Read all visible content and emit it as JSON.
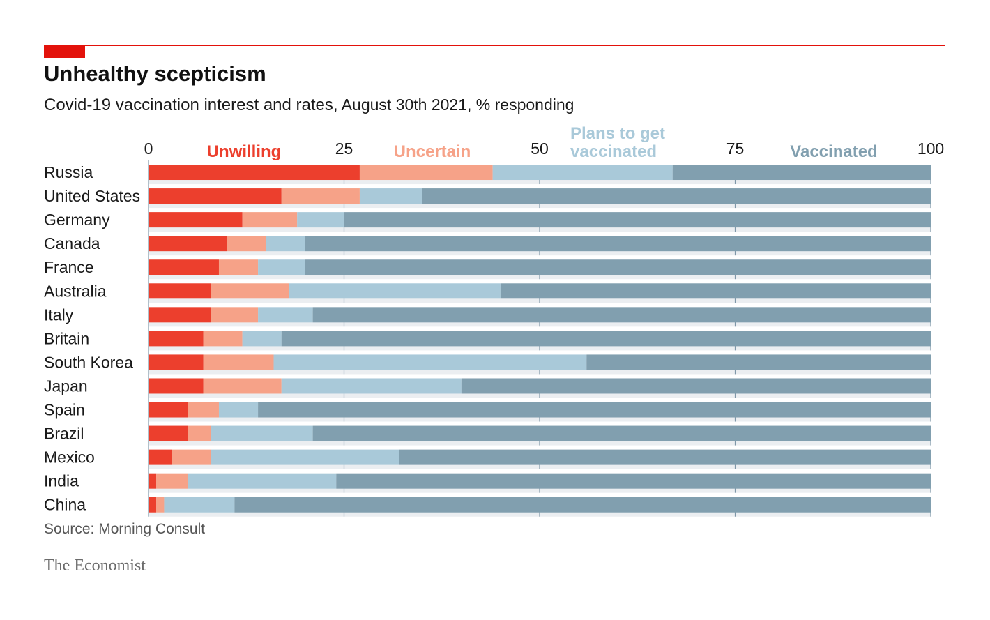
{
  "header": {
    "title": "Unhealthy scepticism",
    "subtitle_main": "Covid-19 vaccination interest and rates,",
    "subtitle_rest": " August 30th 2021, % responding"
  },
  "colors": {
    "accent": "#e3120b",
    "unwilling": "#ec3f2d",
    "uncertain": "#f6a288",
    "plans": "#a9c9d9",
    "vaccinated": "#819faf",
    "gridline": "#7f97a8",
    "row_bg": "#ffffff",
    "plot_bg": "#ebeef1"
  },
  "chart_data": {
    "type": "bar",
    "orientation": "horizontal",
    "stacked": true,
    "title": "Unhealthy scepticism",
    "subtitle": "Covid-19 vaccination interest and rates, August 30th 2021, % responding",
    "xlim": [
      0,
      100
    ],
    "xticks": [
      0,
      25,
      50,
      75,
      100
    ],
    "grid": true,
    "categories": [
      "Russia",
      "United States",
      "Germany",
      "Canada",
      "France",
      "Australia",
      "Italy",
      "Britain",
      "South Korea",
      "Japan",
      "Spain",
      "Brazil",
      "Mexico",
      "India",
      "China"
    ],
    "series": [
      {
        "name": "Unwilling",
        "color_key": "unwilling",
        "label_lines": [
          "Unwilling"
        ],
        "values": [
          27,
          17,
          12,
          10,
          9,
          8,
          8,
          7,
          7,
          7,
          5,
          5,
          3,
          1,
          1
        ]
      },
      {
        "name": "Uncertain",
        "color_key": "uncertain",
        "label_lines": [
          "Uncertain"
        ],
        "values": [
          17,
          10,
          7,
          5,
          5,
          10,
          6,
          5,
          9,
          10,
          4,
          3,
          5,
          4,
          1
        ]
      },
      {
        "name": "Plans to get vaccinated",
        "color_key": "plans",
        "label_lines": [
          "Plans to get",
          "vaccinated"
        ],
        "values": [
          23,
          8,
          6,
          5,
          6,
          27,
          7,
          5,
          40,
          23,
          5,
          13,
          24,
          19,
          9
        ]
      },
      {
        "name": "Vaccinated",
        "color_key": "vaccinated",
        "label_lines": [
          "Vaccinated"
        ],
        "values": [
          33,
          65,
          75,
          80,
          80,
          55,
          79,
          83,
          44,
          60,
          86,
          79,
          68,
          76,
          89
        ]
      }
    ]
  },
  "footer": {
    "source": "Source: Morning Consult",
    "brand": "The Economist"
  }
}
